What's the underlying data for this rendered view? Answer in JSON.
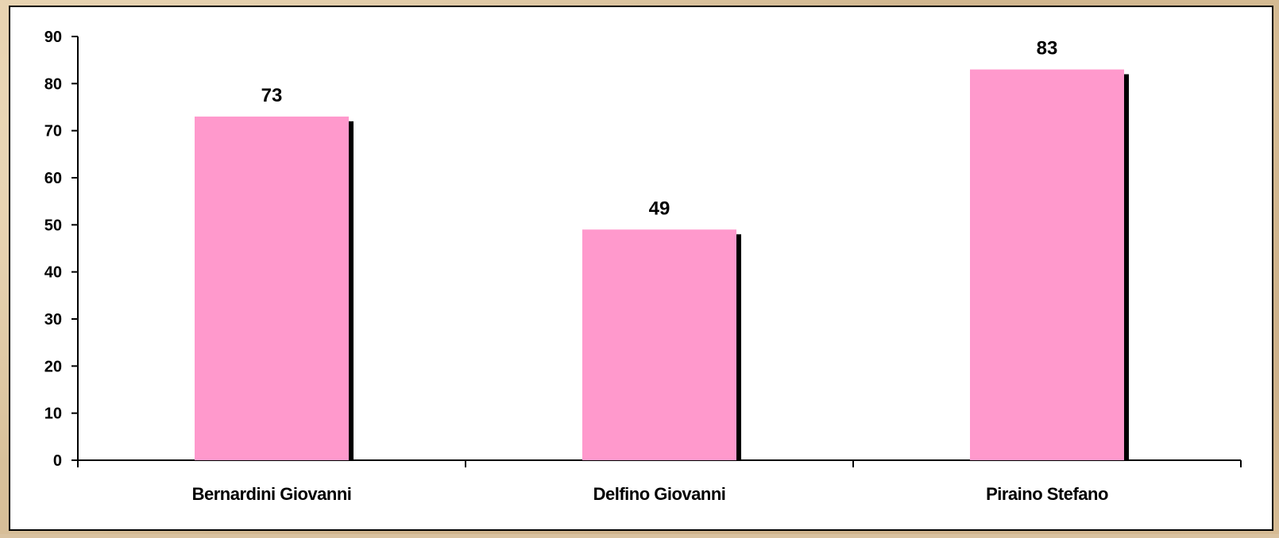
{
  "chart_data": {
    "type": "bar",
    "categories": [
      "Bernardini Giovanni",
      "Delfino Giovanni",
      "Piraino Stefano"
    ],
    "values": [
      73,
      49,
      83
    ],
    "data_labels": [
      "73",
      "49",
      "83"
    ],
    "title": "",
    "xlabel": "",
    "ylabel": "",
    "ylim": [
      0,
      90
    ],
    "yticks": [
      0,
      10,
      20,
      30,
      40,
      50,
      60,
      70,
      80,
      90
    ],
    "ytick_labels": [
      "0",
      "10",
      "20",
      "30",
      "40",
      "50",
      "60",
      "70",
      "80",
      "90"
    ],
    "grid": false,
    "legend": "none",
    "bar_color": "#ff99cc",
    "bar_shadow_color": "#000000",
    "panel_color": "#ffffff"
  }
}
